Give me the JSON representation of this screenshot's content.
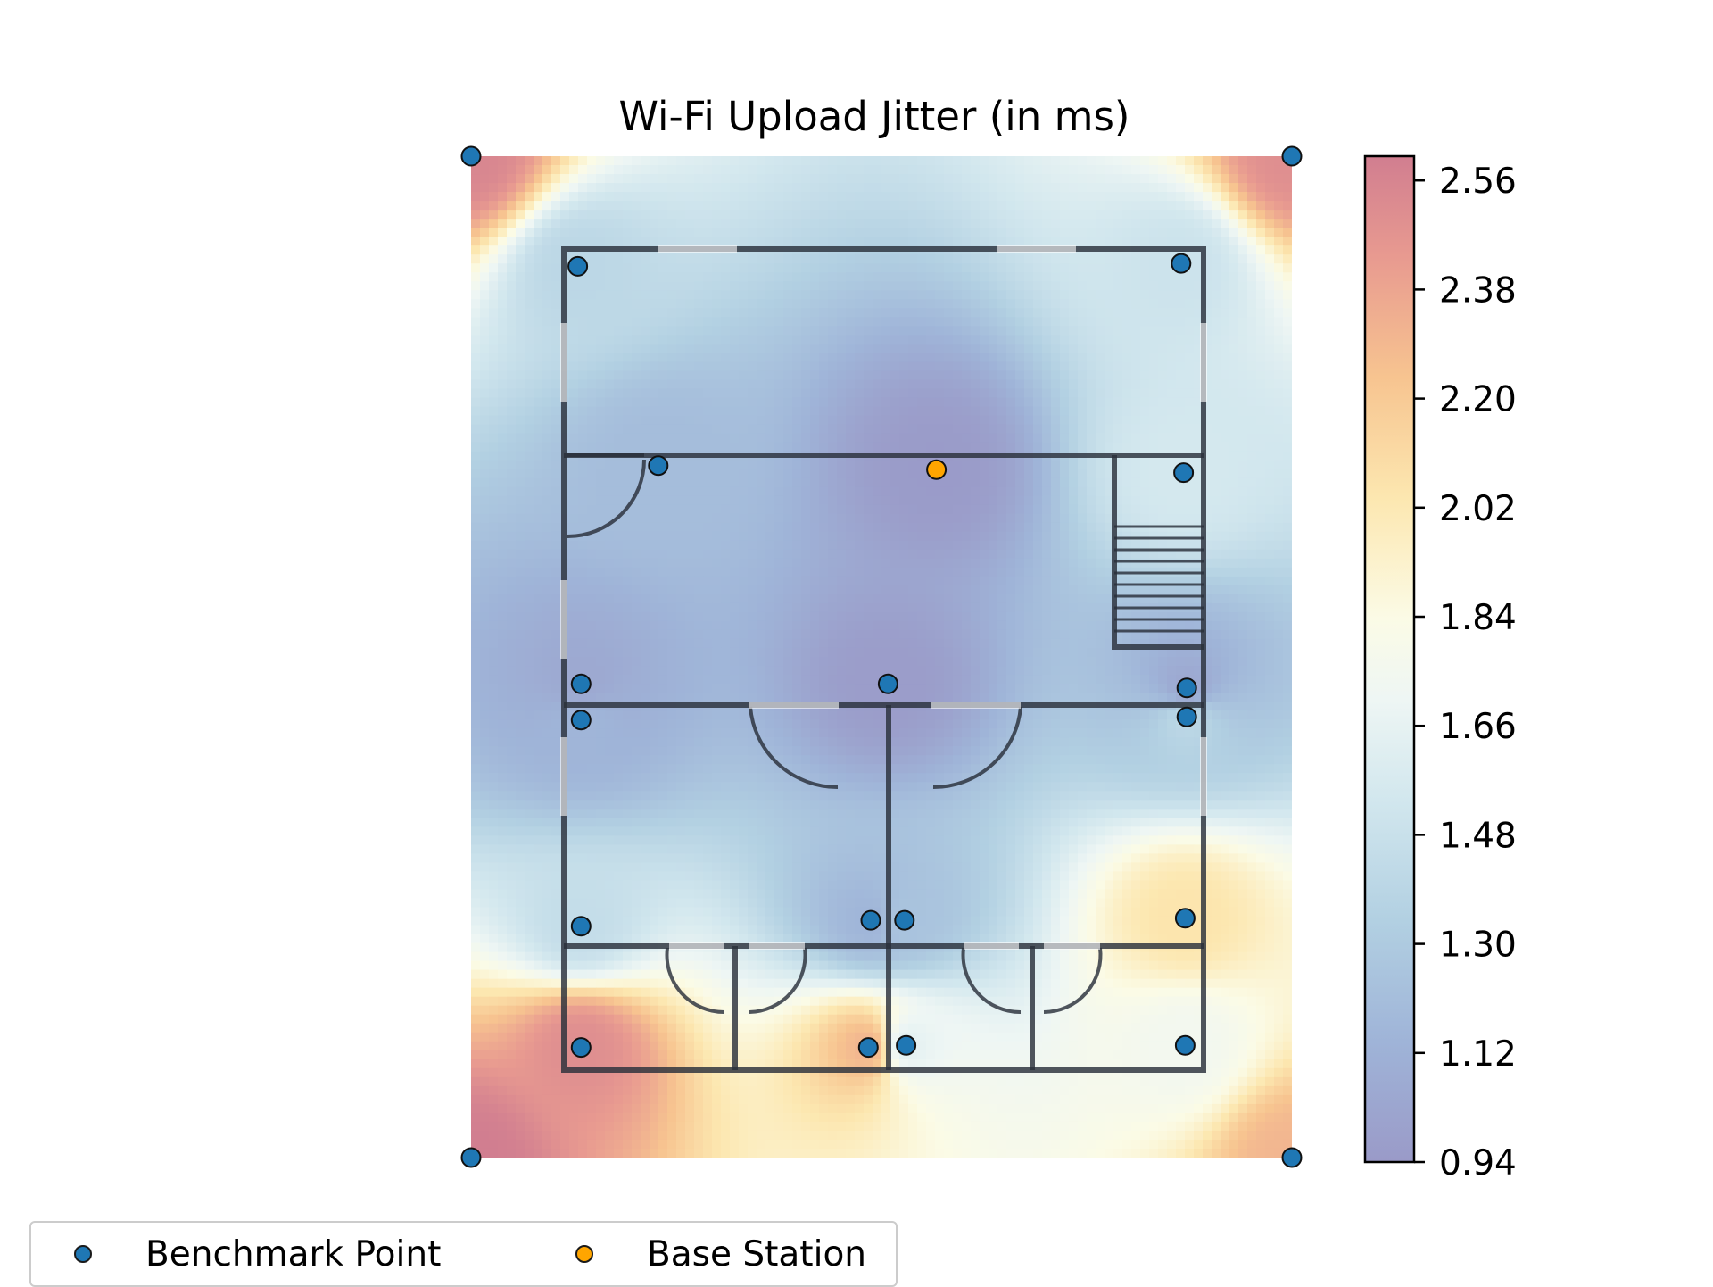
{
  "chart_data": {
    "type": "heatmap",
    "title": "Wi-Fi Upload Jitter (in ms)",
    "colorbar": {
      "min": 0.94,
      "max": 2.6,
      "ticks": [
        "2.56",
        "2.38",
        "2.20",
        "2.02",
        "1.84",
        "1.66",
        "1.48",
        "1.30",
        "1.12",
        "0.94"
      ],
      "tick_values": [
        2.56,
        2.38,
        2.2,
        2.02,
        1.84,
        1.66,
        1.48,
        1.3,
        1.12,
        0.94
      ],
      "colormap": "RdYlBu_r"
    },
    "series": [
      {
        "name": "Benchmark Point",
        "color": "#1f77b4",
        "points": [
          {
            "x": 0.0,
            "y": 0.0,
            "value": 2.55
          },
          {
            "x": 1.0,
            "y": 0.0,
            "value": 2.5
          },
          {
            "x": 0.0,
            "y": 1.0,
            "value": 2.6
          },
          {
            "x": 1.0,
            "y": 1.0,
            "value": 2.3
          },
          {
            "x": 0.13,
            "y": 0.11,
            "value": 1.4
          },
          {
            "x": 0.865,
            "y": 0.107,
            "value": 1.5
          },
          {
            "x": 0.228,
            "y": 0.309,
            "value": 1.2
          },
          {
            "x": 0.868,
            "y": 0.316,
            "value": 1.55
          },
          {
            "x": 0.134,
            "y": 0.527,
            "value": 1.05
          },
          {
            "x": 0.508,
            "y": 0.527,
            "value": 0.96
          },
          {
            "x": 0.872,
            "y": 0.531,
            "value": 1.05
          },
          {
            "x": 0.134,
            "y": 0.563,
            "value": 1.15
          },
          {
            "x": 0.872,
            "y": 0.56,
            "value": 1.4
          },
          {
            "x": 0.134,
            "y": 0.769,
            "value": 1.45
          },
          {
            "x": 0.487,
            "y": 0.763,
            "value": 1.15
          },
          {
            "x": 0.528,
            "y": 0.763,
            "value": 1.25
          },
          {
            "x": 0.87,
            "y": 0.761,
            "value": 2.05
          },
          {
            "x": 0.134,
            "y": 0.89,
            "value": 2.5
          },
          {
            "x": 0.484,
            "y": 0.89,
            "value": 2.3
          },
          {
            "x": 0.53,
            "y": 0.888,
            "value": 1.65
          },
          {
            "x": 0.87,
            "y": 0.888,
            "value": 1.75
          }
        ]
      },
      {
        "name": "Base Station",
        "color": "#ffa500",
        "points": [
          {
            "x": 0.567,
            "y": 0.313,
            "value": 0.95
          }
        ]
      }
    ],
    "legend": {
      "position": "lower-left",
      "entries": [
        "Benchmark Point",
        "Base Station"
      ]
    },
    "grid": false
  }
}
